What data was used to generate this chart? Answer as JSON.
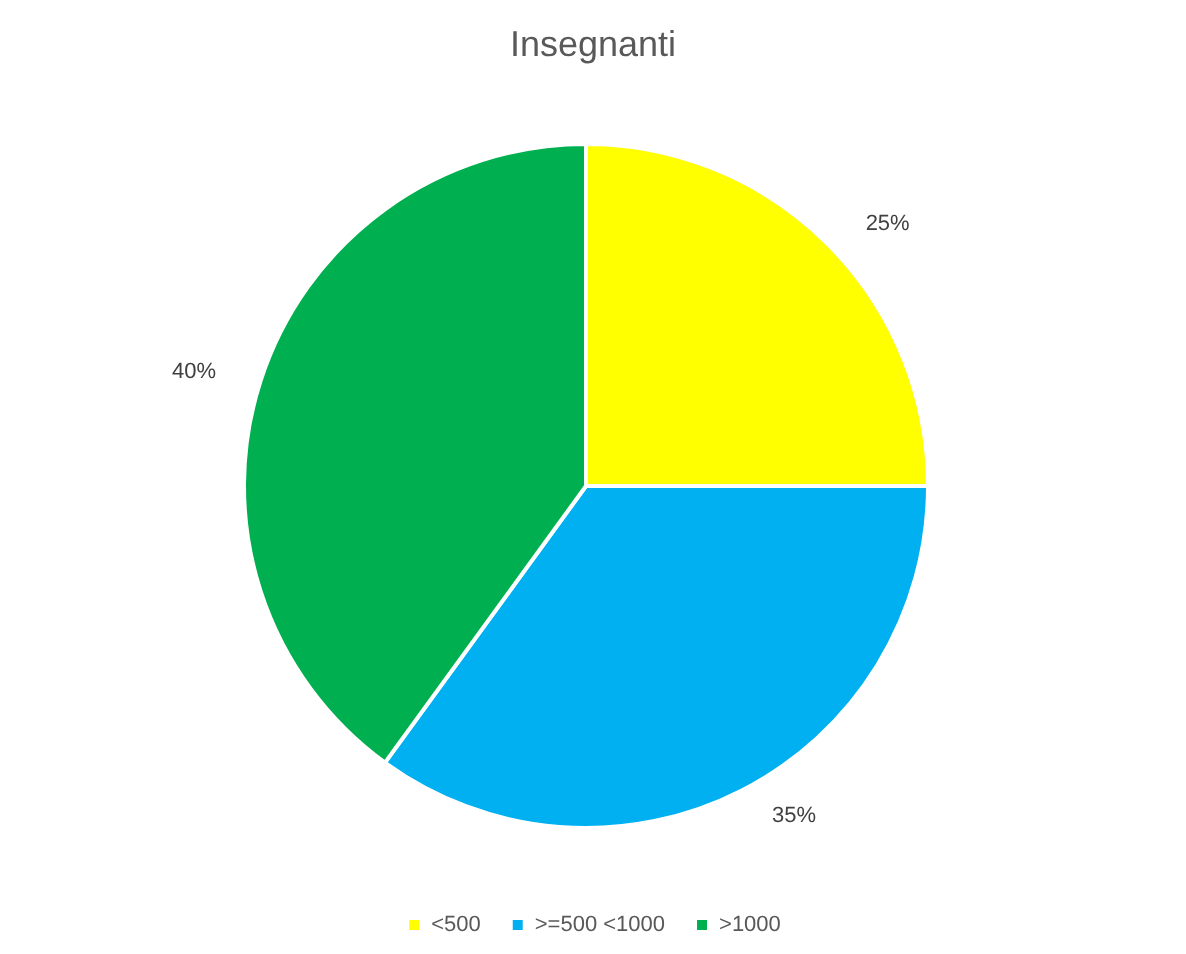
{
  "chart_data": {
    "type": "pie",
    "title": "Insegnanti",
    "categories": [
      "<500",
      ">=500 <1000",
      ">1000"
    ],
    "values": [
      25,
      35,
      40
    ],
    "colors": [
      "#ffff00",
      "#00b0f0",
      "#00b050"
    ],
    "value_labels": [
      "25%",
      "35%",
      "40%"
    ],
    "legend": "bottom"
  }
}
